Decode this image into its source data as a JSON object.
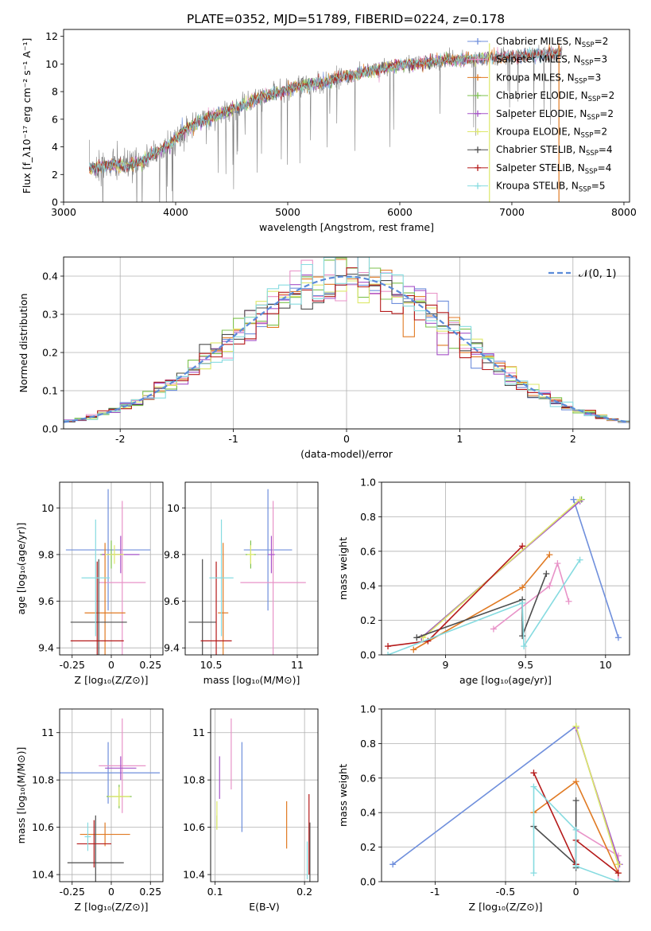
{
  "title": "PLATE=0352, MJD=51789, FIBERID=0224, z=0.178",
  "colors": {
    "Chabrier MILES": "#6f8fdc",
    "Salpeter MILES": "#e893c8",
    "Kroupa MILES": "#e07a23",
    "Chabrier ELODIE": "#7dc14d",
    "Salpeter ELODIE": "#a653c8",
    "Kroupa ELODIE": "#dde86a",
    "Chabrier STELIB": "#4d4d4d",
    "Salpeter STELIB": "#b51a1a",
    "Kroupa STELIB": "#86dbe0",
    "data": "#808080",
    "gaussian": "#5b8bd9"
  },
  "chart_data": [
    {
      "panel": "spectrum",
      "type": "line",
      "xlabel": "wavelength [Angstrom, rest frame]",
      "ylabel": "Flux [f_λ10⁻¹⁷ erg cm⁻² s⁻¹ A⁻¹]",
      "xlim": [
        3000,
        8050
      ],
      "ylim": [
        0,
        12.5
      ],
      "xticks": [
        3000,
        4000,
        5000,
        6000,
        7000,
        8000
      ],
      "yticks": [
        0,
        2,
        4,
        6,
        8,
        10,
        12
      ],
      "grid": false,
      "legend_position": "top-right",
      "legend": [
        {
          "name": "Chabrier MILES",
          "nssp": "N_SSP=2"
        },
        {
          "name": "Salpeter MILES",
          "nssp": "N_SSP=3"
        },
        {
          "name": "Kroupa MILES",
          "nssp": "N_SSP=3"
        },
        {
          "name": "Chabrier ELODIE",
          "nssp": "N_SSP=2"
        },
        {
          "name": "Salpeter ELODIE",
          "nssp": "N_SSP=2"
        },
        {
          "name": "Kroupa ELODIE",
          "nssp": "N_SSP=2"
        },
        {
          "name": "Chabrier STELIB",
          "nssp": "N_SSP=4"
        },
        {
          "name": "Salpeter STELIB",
          "nssp": "N_SSP=4"
        },
        {
          "name": "Kroupa STELIB",
          "nssp": "N_SSP=5"
        }
      ],
      "data_trend": {
        "x": [
          3230,
          3400,
          3550,
          3700,
          3850,
          3950,
          4100,
          4300,
          4500,
          4700,
          4900,
          5100,
          5300,
          5500,
          5700,
          5900,
          6100,
          6300,
          6500,
          6700,
          6900,
          7100,
          7300,
          7450
        ],
        "y": [
          2.4,
          2.7,
          2.6,
          3.0,
          3.7,
          4.2,
          5.3,
          6.1,
          6.7,
          7.4,
          7.9,
          8.4,
          8.6,
          9.1,
          9.4,
          9.8,
          10.0,
          10.2,
          10.3,
          10.4,
          10.5,
          10.6,
          10.7,
          10.8
        ]
      }
    },
    {
      "panel": "residuals",
      "type": "line",
      "xlabel": "(data-model)/error",
      "ylabel": "Normed distribution",
      "xlim": [
        -2.5,
        2.5
      ],
      "ylim": [
        0,
        0.45
      ],
      "xticks": [
        -2,
        -1,
        0,
        1,
        2
      ],
      "yticks": [
        0.0,
        0.1,
        0.2,
        0.3,
        0.4
      ],
      "grid": true,
      "legend_position": "top-right",
      "legend_label": "𝒩(0, 1)",
      "bin_width": 0.1
    },
    {
      "panel": "age-vs-Z",
      "type": "scatter",
      "xlabel": "Z [log₁₀(Z/Z⊙)]",
      "ylabel": "age  [log₁₀(age/yr)]",
      "xlim": [
        -0.33,
        0.33
      ],
      "ylim": [
        9.37,
        10.11
      ],
      "xticks": [
        -0.25,
        0.0,
        0.25
      ],
      "yticks": [
        9.4,
        9.6,
        9.8,
        10.0
      ],
      "grid": true,
      "points": [
        {
          "model": "Chabrier MILES",
          "x": -0.02,
          "xerr": 0.27,
          "y": 9.82,
          "yerr": 0.26
        },
        {
          "model": "Salpeter MILES",
          "x": 0.07,
          "xerr": 0.15,
          "y": 9.68,
          "yerr": 0.35
        },
        {
          "model": "Kroupa MILES",
          "x": -0.04,
          "xerr": 0.13,
          "y": 9.55,
          "yerr": 0.3
        },
        {
          "model": "Chabrier ELODIE",
          "x": 0.0,
          "xerr": 0.07,
          "y": 9.8,
          "yerr": 0.06
        },
        {
          "model": "Salpeter ELODIE",
          "x": 0.06,
          "xerr": 0.12,
          "y": 9.8,
          "yerr": 0.08
        },
        {
          "model": "Kroupa ELODIE",
          "x": 0.02,
          "xerr": 0.06,
          "y": 9.8,
          "yerr": 0.04
        },
        {
          "model": "Chabrier STELIB",
          "x": -0.08,
          "xerr": 0.18,
          "y": 9.51,
          "yerr": 0.27
        },
        {
          "model": "Salpeter STELIB",
          "x": -0.09,
          "xerr": 0.17,
          "y": 9.43,
          "yerr": 0.34
        },
        {
          "model": "Kroupa STELIB",
          "x": -0.1,
          "xerr": 0.09,
          "y": 9.7,
          "yerr": 0.25
        }
      ]
    },
    {
      "panel": "age-vs-mass",
      "type": "scatter",
      "xlabel": "mass [log₁₀(M/M⊙)]",
      "ylabel": "",
      "xlim": [
        10.35,
        11.12
      ],
      "ylim": [
        9.37,
        10.11
      ],
      "xticks": [
        10.5,
        11.0
      ],
      "yticks": [
        9.4,
        9.6,
        9.8,
        10.0
      ],
      "grid": true,
      "points": [
        {
          "model": "Chabrier MILES",
          "x": 10.83,
          "xerr": 0.14,
          "y": 9.82,
          "yerr": 0.26
        },
        {
          "model": "Salpeter MILES",
          "x": 10.86,
          "xerr": 0.19,
          "y": 9.68,
          "yerr": 0.35
        },
        {
          "model": "Kroupa MILES",
          "x": 10.57,
          "xerr": 0.03,
          "y": 9.55,
          "yerr": 0.3
        },
        {
          "model": "Chabrier ELODIE",
          "x": 10.73,
          "xerr": 0.03,
          "y": 9.8,
          "yerr": 0.06
        },
        {
          "model": "Salpeter ELODIE",
          "x": 10.85,
          "xerr": 0.02,
          "y": 9.8,
          "yerr": 0.08
        },
        {
          "model": "Kroupa ELODIE",
          "x": 10.73,
          "xerr": 0.02,
          "y": 9.8,
          "yerr": 0.04
        },
        {
          "model": "Chabrier STELIB",
          "x": 10.45,
          "xerr": 0.08,
          "y": 9.51,
          "yerr": 0.27
        },
        {
          "model": "Salpeter STELIB",
          "x": 10.53,
          "xerr": 0.09,
          "y": 9.43,
          "yerr": 0.34
        },
        {
          "model": "Kroupa STELIB",
          "x": 10.56,
          "xerr": 0.07,
          "y": 9.7,
          "yerr": 0.25
        }
      ]
    },
    {
      "panel": "weight-vs-age",
      "type": "line",
      "xlabel": "age  [log₁₀(age/yr)]",
      "ylabel": "mass weight",
      "xlim": [
        8.6,
        10.15
      ],
      "ylim": [
        0,
        1.0
      ],
      "xticks": [
        9.0,
        9.5,
        10.0
      ],
      "yticks": [
        0.0,
        0.2,
        0.4,
        0.6,
        0.8,
        1.0
      ],
      "grid": true,
      "series": [
        {
          "model": "Chabrier MILES",
          "x": [
            9.8,
            10.08
          ],
          "y": [
            0.9,
            0.1
          ]
        },
        {
          "model": "Salpeter MILES",
          "x": [
            9.3,
            9.65,
            9.7,
            9.77
          ],
          "y": [
            0.15,
            0.4,
            0.53,
            0.31
          ]
        },
        {
          "model": "Kroupa MILES",
          "x": [
            8.8,
            9.48,
            9.65
          ],
          "y": [
            0.03,
            0.39,
            0.58
          ]
        },
        {
          "model": "Chabrier ELODIE",
          "x": [
            8.85,
            9.85
          ],
          "y": [
            0.1,
            0.9
          ]
        },
        {
          "model": "Salpeter ELODIE",
          "x": [
            8.85,
            9.84
          ],
          "y": [
            0.1,
            0.89
          ]
        },
        {
          "model": "Kroupa ELODIE",
          "x": [
            8.86,
            9.84
          ],
          "y": [
            0.1,
            0.9
          ]
        },
        {
          "model": "Chabrier STELIB",
          "x": [
            8.82,
            9.48,
            9.48,
            9.63
          ],
          "y": [
            0.1,
            0.32,
            0.11,
            0.47
          ]
        },
        {
          "model": "Salpeter STELIB",
          "x": [
            8.64,
            8.89,
            9.48
          ],
          "y": [
            0.05,
            0.08,
            0.63
          ]
        },
        {
          "model": "Kroupa STELIB",
          "x": [
            8.64,
            9.48,
            9.49,
            9.84
          ],
          "y": [
            0.0,
            0.3,
            0.05,
            0.55
          ]
        }
      ]
    },
    {
      "panel": "mass-vs-Z",
      "type": "scatter",
      "xlabel": "Z [log₁₀(Z/Z⊙)]",
      "ylabel": "mass [log₁₀(M/M⊙)]",
      "xlim": [
        -0.33,
        0.33
      ],
      "ylim": [
        10.37,
        11.1
      ],
      "xticks": [
        -0.25,
        0.0,
        0.25
      ],
      "yticks": [
        10.4,
        10.6,
        10.8,
        11.0
      ],
      "grid": true,
      "points": [
        {
          "model": "Chabrier MILES",
          "x": -0.02,
          "xerr": 0.33,
          "y": 10.83,
          "yerr": 0.13
        },
        {
          "model": "Salpeter MILES",
          "x": 0.07,
          "xerr": 0.15,
          "y": 10.86,
          "yerr": 0.2
        },
        {
          "model": "Kroupa MILES",
          "x": -0.04,
          "xerr": 0.16,
          "y": 10.57,
          "yerr": 0.05
        },
        {
          "model": "Chabrier ELODIE",
          "x": 0.05,
          "xerr": 0.08,
          "y": 10.73,
          "yerr": 0.05
        },
        {
          "model": "Salpeter ELODIE",
          "x": 0.06,
          "xerr": 0.1,
          "y": 10.85,
          "yerr": 0.05
        },
        {
          "model": "Kroupa ELODIE",
          "x": 0.05,
          "xerr": 0.07,
          "y": 10.73,
          "yerr": 0.04
        },
        {
          "model": "Chabrier STELIB",
          "x": -0.1,
          "xerr": 0.18,
          "y": 10.45,
          "yerr": 0.2
        },
        {
          "model": "Salpeter STELIB",
          "x": -0.11,
          "xerr": 0.11,
          "y": 10.53,
          "yerr": 0.1
        },
        {
          "model": "Kroupa STELIB",
          "x": -0.15,
          "xerr": 0.02,
          "y": 10.56,
          "yerr": 0.06
        }
      ]
    },
    {
      "panel": "mass-vs-EBV",
      "type": "scatter",
      "xlabel": "E(B-V)",
      "ylabel": "",
      "xlim": [
        0.095,
        0.215
      ],
      "ylim": [
        10.37,
        11.1
      ],
      "xticks": [
        0.1,
        0.2
      ],
      "yticks": [
        10.4,
        10.6,
        10.8,
        11.0
      ],
      "grid": true,
      "points": [
        {
          "model": "Chabrier MILES",
          "x": 0.13,
          "y": 10.77,
          "yerr": 0.19
        },
        {
          "model": "Salpeter MILES",
          "x": 0.118,
          "y": 10.91,
          "yerr": 0.15
        },
        {
          "model": "Kroupa MILES",
          "x": 0.18,
          "y": 10.61,
          "yerr": 0.1
        },
        {
          "model": "Chabrier ELODIE",
          "x": 0.102,
          "y": 10.62,
          "yerr": 0.03
        },
        {
          "model": "Salpeter ELODIE",
          "x": 0.105,
          "y": 10.81,
          "yerr": 0.09
        },
        {
          "model": "Kroupa ELODIE",
          "x": 0.102,
          "y": 10.65,
          "yerr": 0.06
        },
        {
          "model": "Chabrier STELIB",
          "x": 0.206,
          "y": 10.47,
          "yerr": 0.15
        },
        {
          "model": "Salpeter STELIB",
          "x": 0.205,
          "y": 10.57,
          "yerr": 0.17
        },
        {
          "model": "Kroupa STELIB",
          "x": 0.203,
          "y": 10.46,
          "yerr": 0.08
        }
      ]
    },
    {
      "panel": "weight-vs-Z",
      "type": "line",
      "xlabel": "Z [log₁₀(Z/Z⊙)]",
      "ylabel": "mass weight",
      "xlim": [
        -1.38,
        0.38
      ],
      "ylim": [
        0,
        1.0
      ],
      "xticks": [
        -1.0,
        -0.5,
        0.0
      ],
      "yticks": [
        0.0,
        0.2,
        0.4,
        0.6,
        0.8,
        1.0
      ],
      "grid": true,
      "series": [
        {
          "model": "Chabrier MILES",
          "x": [
            -1.3,
            0.0
          ],
          "y": [
            0.1,
            0.9
          ]
        },
        {
          "model": "Salpeter MILES",
          "x": [
            0.0,
            0.3,
            0.3
          ],
          "y": [
            0.3,
            0.15,
            0.0
          ]
        },
        {
          "model": "Kroupa MILES",
          "x": [
            -0.3,
            0.0,
            0.3
          ],
          "y": [
            0.4,
            0.58,
            0.05
          ]
        },
        {
          "model": "Chabrier ELODIE",
          "x": [
            0.0,
            0.3
          ],
          "y": [
            0.9,
            0.1
          ]
        },
        {
          "model": "Salpeter ELODIE",
          "x": [
            0.0,
            0.31
          ],
          "y": [
            0.89,
            0.1
          ]
        },
        {
          "model": "Kroupa ELODIE",
          "x": [
            0.0,
            0.3
          ],
          "y": [
            0.9,
            0.1
          ]
        },
        {
          "model": "Chabrier STELIB",
          "x": [
            -0.3,
            0.0,
            0.0,
            0.0
          ],
          "y": [
            0.32,
            0.1,
            0.47,
            0.08
          ]
        },
        {
          "model": "Salpeter STELIB",
          "x": [
            -0.3,
            0.0,
            0.0,
            0.3
          ],
          "y": [
            0.63,
            0.1,
            0.24,
            0.05
          ]
        },
        {
          "model": "Kroupa STELIB",
          "x": [
            -0.3,
            -0.3,
            0.0,
            0.0,
            0.3
          ],
          "y": [
            0.05,
            0.55,
            0.3,
            0.09,
            0.0
          ]
        }
      ]
    }
  ]
}
